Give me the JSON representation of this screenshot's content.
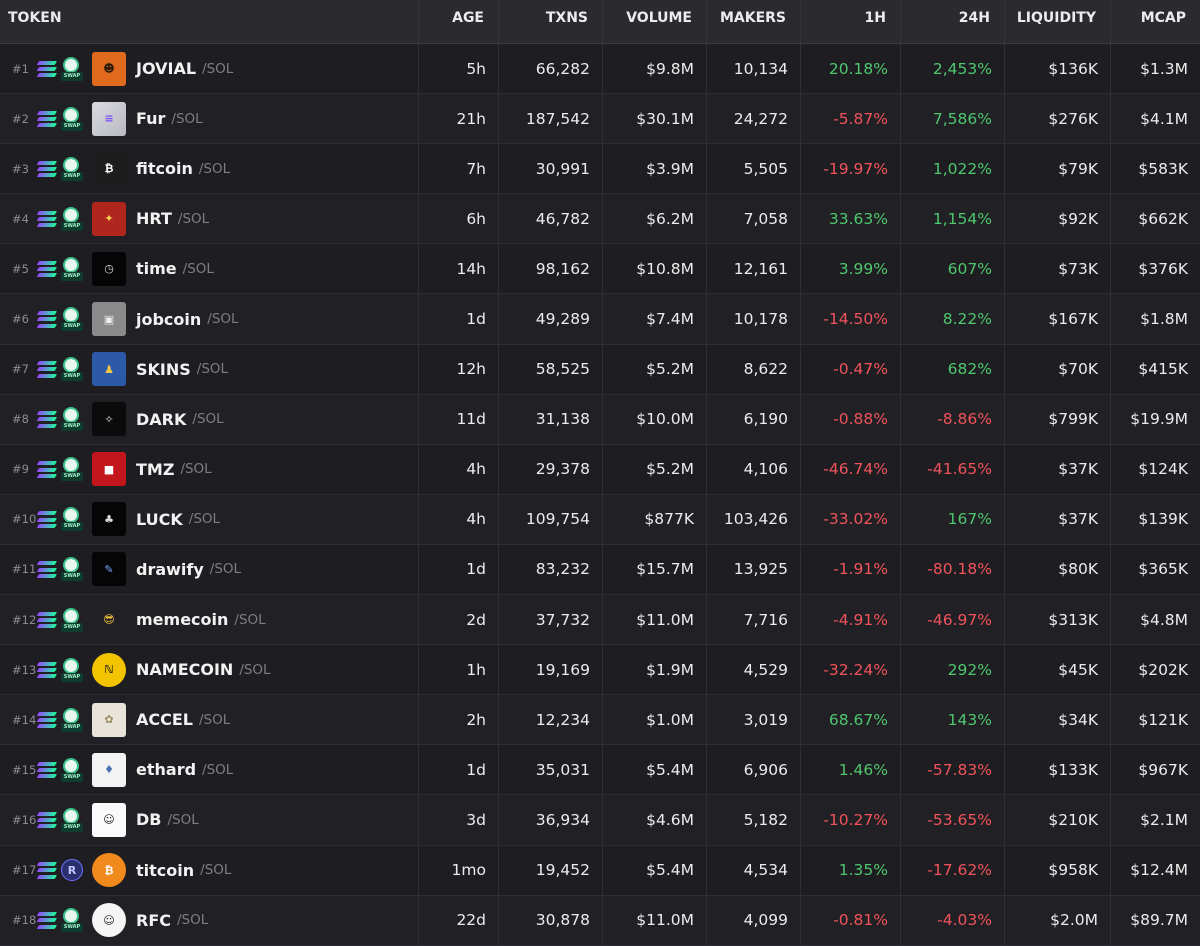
{
  "columns": {
    "token": "TOKEN",
    "age": "AGE",
    "txns": "TXNS",
    "volume": "VOLUME",
    "makers": "MAKERS",
    "h1": "1H",
    "h24": "24H",
    "liquidity": "LIQUIDITY",
    "mcap": "MCAP"
  },
  "colors": {
    "positive": "#4fc66e",
    "negative": "#f0535b",
    "background": "#1f1f23"
  },
  "rows": [
    {
      "rank": "#1",
      "name": "JOVIAL",
      "pair": "/SOL",
      "age": "5h",
      "txns": "66,282",
      "volume": "$9.8M",
      "makers": "10,134",
      "h1": "20.18%",
      "h24": "2,453%",
      "liquidity": "$136K",
      "mcap": "$1.3M",
      "icon": "cartoon-character-logo",
      "dex": "swap"
    },
    {
      "rank": "#2",
      "name": "Fur",
      "pair": "/SOL",
      "age": "21h",
      "txns": "187,542",
      "volume": "$30.1M",
      "makers": "24,272",
      "h1": "-5.87%",
      "h24": "7,586%",
      "liquidity": "$276K",
      "mcap": "$4.1M",
      "icon": "solana-logo",
      "dex": "swap"
    },
    {
      "rank": "#3",
      "name": "fitcoin",
      "pair": "/SOL",
      "age": "7h",
      "txns": "30,991",
      "volume": "$3.9M",
      "makers": "5,505",
      "h1": "-19.97%",
      "h24": "1,022%",
      "liquidity": "$79K",
      "mcap": "$583K",
      "icon": "green-bitcoin-logo",
      "dex": "swap"
    },
    {
      "rank": "#4",
      "name": "HRT",
      "pair": "/SOL",
      "age": "6h",
      "txns": "46,782",
      "volume": "$6.2M",
      "makers": "7,058",
      "h1": "33.63%",
      "h24": "1,154%",
      "liquidity": "$92K",
      "mcap": "$662K",
      "icon": "red-art-logo",
      "dex": "swap"
    },
    {
      "rank": "#5",
      "name": "time",
      "pair": "/SOL",
      "age": "14h",
      "txns": "98,162",
      "volume": "$10.8M",
      "makers": "12,161",
      "h1": "3.99%",
      "h24": "607%",
      "liquidity": "$73K",
      "mcap": "$376K",
      "icon": "black-time-logo",
      "dex": "swap"
    },
    {
      "rank": "#6",
      "name": "jobcoin",
      "pair": "/SOL",
      "age": "1d",
      "txns": "49,289",
      "volume": "$7.4M",
      "makers": "10,178",
      "h1": "-14.50%",
      "h24": "8.22%",
      "liquidity": "$167K",
      "mcap": "$1.8M",
      "icon": "grey-job-logo",
      "dex": "swap"
    },
    {
      "rank": "#7",
      "name": "SKINS",
      "pair": "/SOL",
      "age": "12h",
      "txns": "58,525",
      "volume": "$5.2M",
      "makers": "8,622",
      "h1": "-0.47%",
      "h24": "682%",
      "liquidity": "$70K",
      "mcap": "$415K",
      "icon": "pixel-skins-logo",
      "dex": "swap"
    },
    {
      "rank": "#8",
      "name": "DARK",
      "pair": "/SOL",
      "age": "11d",
      "txns": "31,138",
      "volume": "$10.0M",
      "makers": "6,190",
      "h1": "-0.88%",
      "h24": "-8.86%",
      "liquidity": "$799K",
      "mcap": "$19.9M",
      "icon": "star-dark-logo",
      "dex": "swap"
    },
    {
      "rank": "#9",
      "name": "TMZ",
      "pair": "/SOL",
      "age": "4h",
      "txns": "29,378",
      "volume": "$5.2M",
      "makers": "4,106",
      "h1": "-46.74%",
      "h24": "-41.65%",
      "liquidity": "$37K",
      "mcap": "$124K",
      "icon": "tmz-logo",
      "dex": "swap"
    },
    {
      "rank": "#10",
      "name": "LUCK",
      "pair": "/SOL",
      "age": "4h",
      "txns": "109,754",
      "volume": "$877K",
      "makers": "103,426",
      "h1": "-33.02%",
      "h24": "167%",
      "liquidity": "$37K",
      "mcap": "$139K",
      "icon": "black-luck-logo",
      "dex": "swap"
    },
    {
      "rank": "#11",
      "name": "drawify",
      "pair": "/SOL",
      "age": "1d",
      "txns": "83,232",
      "volume": "$15.7M",
      "makers": "13,925",
      "h1": "-1.91%",
      "h24": "-80.18%",
      "liquidity": "$80K",
      "mcap": "$365K",
      "icon": "black-draw-logo",
      "dex": "swap"
    },
    {
      "rank": "#12",
      "name": "memecoin",
      "pair": "/SOL",
      "age": "2d",
      "txns": "37,732",
      "volume": "$11.0M",
      "makers": "7,716",
      "h1": "-4.91%",
      "h24": "-46.97%",
      "liquidity": "$313K",
      "mcap": "$4.8M",
      "icon": "sunglasses-emoji-logo",
      "dex": "swap"
    },
    {
      "rank": "#13",
      "name": "NAMECOIN",
      "pair": "/SOL",
      "age": "1h",
      "txns": "19,169",
      "volume": "$1.9M",
      "makers": "4,529",
      "h1": "-32.24%",
      "h24": "292%",
      "liquidity": "$45K",
      "mcap": "$202K",
      "icon": "namecoin-logo",
      "dex": "swap"
    },
    {
      "rank": "#14",
      "name": "ACCEL",
      "pair": "/SOL",
      "age": "2h",
      "txns": "12,234",
      "volume": "$1.0M",
      "makers": "3,019",
      "h1": "68.67%",
      "h24": "143%",
      "liquidity": "$34K",
      "mcap": "$121K",
      "icon": "accel-logo",
      "dex": "swap"
    },
    {
      "rank": "#15",
      "name": "ethard",
      "pair": "/SOL",
      "age": "1d",
      "txns": "35,031",
      "volume": "$5.4M",
      "makers": "6,906",
      "h1": "1.46%",
      "h24": "-57.83%",
      "liquidity": "$133K",
      "mcap": "$967K",
      "icon": "ethereum-logo",
      "dex": "swap"
    },
    {
      "rank": "#16",
      "name": "DB",
      "pair": "/SOL",
      "age": "3d",
      "txns": "36,934",
      "volume": "$4.6M",
      "makers": "5,182",
      "h1": "-10.27%",
      "h24": "-53.65%",
      "liquidity": "$210K",
      "mcap": "$2.1M",
      "icon": "duck-sketch-logo",
      "dex": "swap"
    },
    {
      "rank": "#17",
      "name": "titcoin",
      "pair": "/SOL",
      "age": "1mo",
      "txns": "19,452",
      "volume": "$5.4M",
      "makers": "4,534",
      "h1": "1.35%",
      "h24": "-17.62%",
      "liquidity": "$958K",
      "mcap": "$12.4M",
      "icon": "orange-bitcoin-logo",
      "dex": "raydium"
    },
    {
      "rank": "#18",
      "name": "RFC",
      "pair": "/SOL",
      "age": "22d",
      "txns": "30,878",
      "volume": "$11.0M",
      "makers": "4,099",
      "h1": "-0.81%",
      "h24": "-4.03%",
      "liquidity": "$2.0M",
      "mcap": "$89.7M",
      "icon": "trollface-logo",
      "dex": "swap"
    }
  ]
}
